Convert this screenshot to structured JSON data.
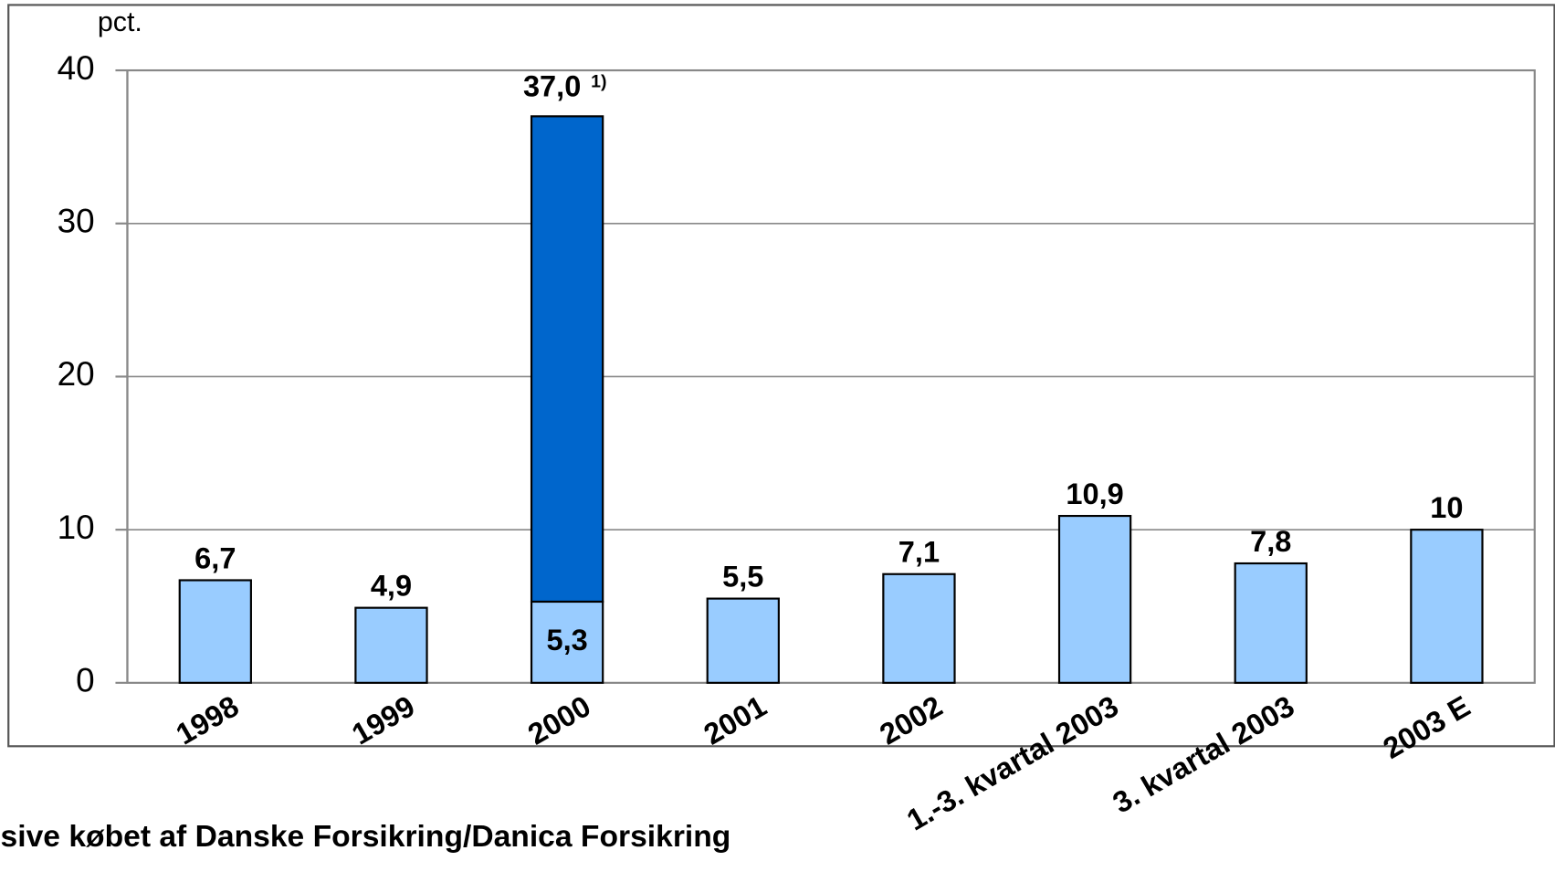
{
  "chart_data": {
    "type": "bar",
    "stacked": true,
    "y_unit_label": "pct.",
    "categories": [
      "1998",
      "1999",
      "2000",
      "2001",
      "2002",
      "1.-3. kvartal 2003",
      "3. kvartal 2003",
      "2003 E"
    ],
    "series": [
      {
        "color": "#99ccff",
        "values": [
          6.7,
          4.9,
          5.3,
          5.5,
          7.1,
          10.9,
          7.8,
          10
        ],
        "value_labels": [
          "6,7",
          "4,9",
          "5,3",
          "5,5",
          "7,1",
          "10,9",
          "7,8",
          "10"
        ]
      },
      {
        "color": "#0066cc",
        "values": [
          null,
          null,
          31.7,
          null,
          null,
          null,
          null,
          null
        ]
      }
    ],
    "annotations": [
      {
        "category": 2,
        "text": "37,0",
        "note": "1)"
      }
    ],
    "footnote": "sive købet af Danske Forsikring/Danica Forsikring",
    "ylim": [
      0,
      40
    ],
    "yticks": [
      0,
      10,
      20,
      30,
      40
    ],
    "grid": true
  }
}
